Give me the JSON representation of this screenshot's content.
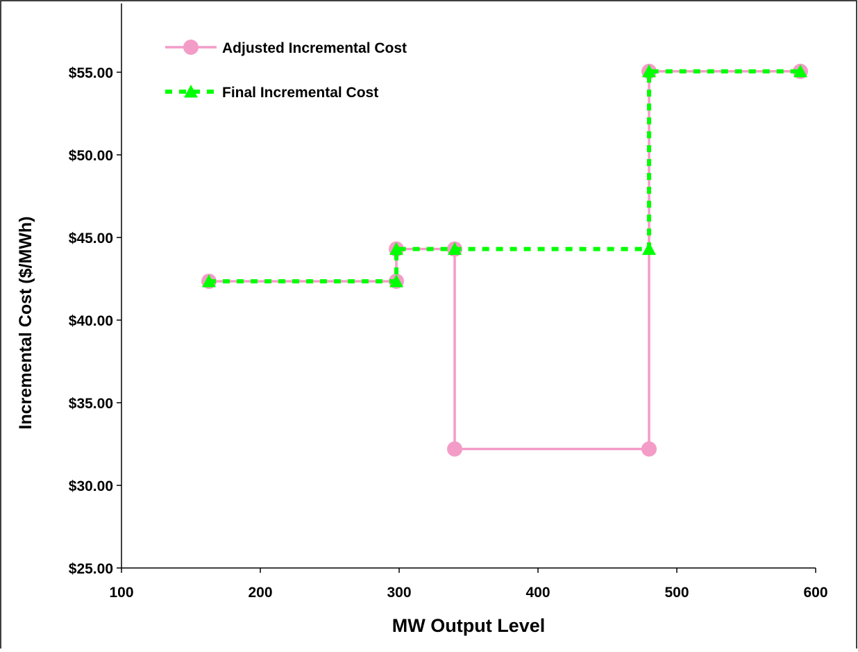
{
  "chart_data": {
    "type": "line",
    "title": "",
    "xlabel": "MW Output Level",
    "ylabel": "Incremental Cost ($/MWh)",
    "xlim": [
      100,
      600
    ],
    "ylim": [
      25,
      55
    ],
    "x_ticks": [
      100,
      200,
      300,
      400,
      500,
      600
    ],
    "y_ticks": [
      25,
      30,
      35,
      40,
      45,
      50,
      55
    ],
    "x_tick_labels": [
      "100",
      "200",
      "300",
      "400",
      "500",
      "600"
    ],
    "y_tick_labels": [
      "$25.00",
      "$30.00",
      "$35.00",
      "$40.00",
      "$45.00",
      "$50.00",
      "$55.00"
    ],
    "grid": false,
    "legend_position": "top-left",
    "series": [
      {
        "name": "Adjusted Incremental Cost",
        "color": "#f49cc8",
        "line_style": "solid",
        "marker": "circle",
        "x": [
          163,
          298,
          298,
          340,
          340,
          480,
          480,
          589
        ],
        "y": [
          42.35,
          42.35,
          44.3,
          44.3,
          32.2,
          32.2,
          55.05,
          55.05
        ]
      },
      {
        "name": "Final Incremental Cost",
        "color": "#00ff00",
        "line_style": "dashed",
        "marker": "triangle",
        "x": [
          163,
          298,
          298,
          340,
          480,
          480,
          589
        ],
        "y": [
          42.35,
          42.35,
          44.3,
          44.3,
          44.3,
          55.05,
          55.05
        ]
      }
    ]
  }
}
